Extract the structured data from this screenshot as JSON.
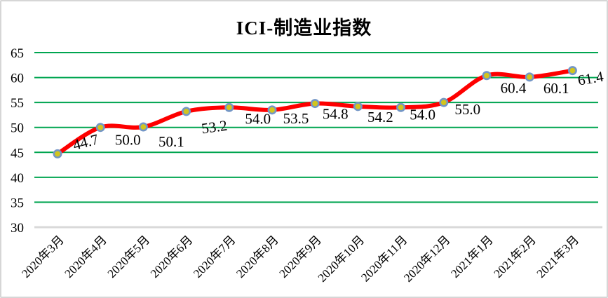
{
  "chart_data": {
    "type": "line",
    "title": "ICI-制造业指数",
    "categories": [
      "2020年3月",
      "2020年4月",
      "2020年5月",
      "2020年6月",
      "2020年7月",
      "2020年8月",
      "2020年9月",
      "2020年10月",
      "2020年11月",
      "2020年12月",
      "2021年1月",
      "2021年2月",
      "2021年3月"
    ],
    "series": [
      {
        "name": "ICI-制造业指数",
        "values": [
          44.7,
          50.0,
          50.1,
          53.2,
          54.0,
          53.5,
          54.8,
          54.2,
          54.0,
          55.0,
          60.4,
          60.1,
          61.4
        ]
      }
    ],
    "data_labels": [
      "44.7",
      "50.0",
      "50.1",
      "53.2",
      "54.0",
      "53.5",
      "54.8",
      "54.2",
      "54.0",
      "55.0",
      "60.4",
      "60.1",
      "61.4"
    ],
    "ylim": [
      30,
      65
    ],
    "ytick_step": 5,
    "yticks": [
      "30",
      "35",
      "40",
      "45",
      "50",
      "55",
      "60",
      "65"
    ],
    "xlabel": "",
    "ylabel": "",
    "grid": "horizontal",
    "legend": "none",
    "line_smoothing": true,
    "colors": {
      "line": "#fe0000",
      "marker_fill": "#d2c51e",
      "marker_stroke": "#7396c6",
      "gridline": "#00a550",
      "baseline": "#d9d9d9",
      "text": "#000000",
      "border": "#d6d6d6",
      "background": "#ffffff"
    }
  }
}
